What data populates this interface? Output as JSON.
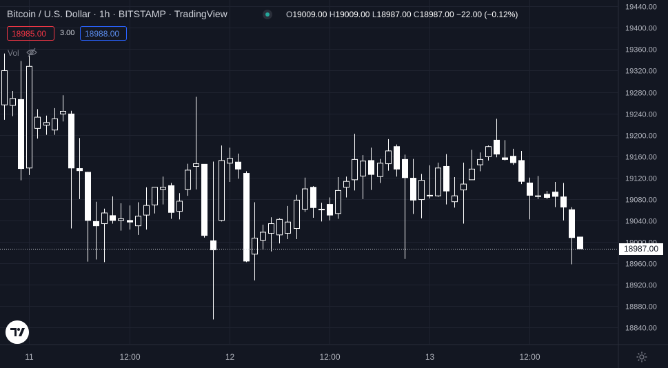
{
  "header": {
    "symbol_title": "Bitcoin / U.S. Dollar · 1h · BITSTAMP · TradingView",
    "ohlc": {
      "o_label": "O",
      "o": "19009.00",
      "h_label": "H",
      "h": "19009.00",
      "l_label": "L",
      "l": "18987.00",
      "c_label": "C",
      "c": "18987.00",
      "change": "−22.00 (−0.12%)"
    }
  },
  "trade": {
    "sell_price": "18985.00",
    "spread": "3.00",
    "buy_price": "18988.00"
  },
  "volume_label": "Vol",
  "icons": {
    "visibility": "eye-off-icon",
    "logo": "tradingview-logo-icon",
    "settings": "gear-icon"
  },
  "colors": {
    "background": "#131722",
    "candle": "#ffffff",
    "sell": "#f23645",
    "buy": "#2962ff",
    "grid": "#1f2330",
    "status_dot": "#26a69a"
  },
  "chart_data": {
    "type": "candlestick",
    "symbol": "BTCUSD",
    "interval": "1h",
    "y_ticks": [
      19440,
      19400,
      19360,
      19320,
      19280,
      19240,
      19200,
      19160,
      19120,
      19080,
      19040,
      19000,
      18960,
      18920,
      18880,
      18840
    ],
    "y_tick_labels": [
      "19440.00",
      "19400.00",
      "19360.00",
      "19320.00",
      "19280.00",
      "19240.00",
      "19200.00",
      "19160.00",
      "19120.00",
      "19080.00",
      "19040.00",
      "19000.00",
      "18960.00",
      "18920.00",
      "18880.00",
      "18840.00"
    ],
    "ylim": [
      18808,
      19452
    ],
    "x_tick_labels": [
      {
        "label": "11",
        "index": 3
      },
      {
        "label": "12:00",
        "index": 15
      },
      {
        "label": "12",
        "index": 27
      },
      {
        "label": "12:00",
        "index": 39
      },
      {
        "label": "13",
        "index": 51
      },
      {
        "label": "12:00",
        "index": 63
      }
    ],
    "last_price": 18987.0,
    "last_price_label": "18987.00",
    "candles": [
      {
        "o": 19256,
        "h": 19352,
        "l": 19228,
        "c": 19320
      },
      {
        "o": 19255,
        "h": 19282,
        "l": 19235,
        "c": 19268
      },
      {
        "o": 19266,
        "h": 19338,
        "l": 19115,
        "c": 19137
      },
      {
        "o": 19138,
        "h": 19350,
        "l": 19125,
        "c": 19328
      },
      {
        "o": 19212,
        "h": 19248,
        "l": 19193,
        "c": 19233
      },
      {
        "o": 19218,
        "h": 19236,
        "l": 19200,
        "c": 19223
      },
      {
        "o": 19209,
        "h": 19250,
        "l": 19200,
        "c": 19230
      },
      {
        "o": 19239,
        "h": 19274,
        "l": 19225,
        "c": 19244
      },
      {
        "o": 19239,
        "h": 19245,
        "l": 19025,
        "c": 19138
      },
      {
        "o": 19137,
        "h": 19194,
        "l": 19080,
        "c": 19133
      },
      {
        "o": 19130,
        "h": 19131,
        "l": 18963,
        "c": 19040
      },
      {
        "o": 19038,
        "h": 19075,
        "l": 18967,
        "c": 19030
      },
      {
        "o": 19034,
        "h": 19062,
        "l": 18962,
        "c": 19054
      },
      {
        "o": 19049,
        "h": 19085,
        "l": 19034,
        "c": 19040
      },
      {
        "o": 19040,
        "h": 19072,
        "l": 19021,
        "c": 19043
      },
      {
        "o": 19040,
        "h": 19068,
        "l": 19023,
        "c": 19037
      },
      {
        "o": 19030,
        "h": 19074,
        "l": 19013,
        "c": 19048
      },
      {
        "o": 19050,
        "h": 19102,
        "l": 19023,
        "c": 19068
      },
      {
        "o": 19069,
        "h": 19102,
        "l": 19053,
        "c": 19102
      },
      {
        "o": 19098,
        "h": 19122,
        "l": 19070,
        "c": 19102
      },
      {
        "o": 19105,
        "h": 19110,
        "l": 19043,
        "c": 19055
      },
      {
        "o": 19057,
        "h": 19091,
        "l": 19042,
        "c": 19076
      },
      {
        "o": 19098,
        "h": 19146,
        "l": 19086,
        "c": 19134
      },
      {
        "o": 19141,
        "h": 19271,
        "l": 19098,
        "c": 19146
      },
      {
        "o": 19145,
        "h": 19145,
        "l": 19008,
        "c": 19012
      },
      {
        "o": 19002,
        "h": 19150,
        "l": 18855,
        "c": 18985
      },
      {
        "o": 19040,
        "h": 19180,
        "l": 19038,
        "c": 19152
      },
      {
        "o": 19147,
        "h": 19176,
        "l": 19112,
        "c": 19156
      },
      {
        "o": 19149,
        "h": 19165,
        "l": 19118,
        "c": 19136
      },
      {
        "o": 19128,
        "h": 19132,
        "l": 18962,
        "c": 18964
      },
      {
        "o": 18977,
        "h": 19074,
        "l": 18928,
        "c": 19007
      },
      {
        "o": 19003,
        "h": 19032,
        "l": 18985,
        "c": 19018
      },
      {
        "o": 19016,
        "h": 19046,
        "l": 18982,
        "c": 19034
      },
      {
        "o": 19013,
        "h": 19044,
        "l": 18997,
        "c": 19042
      },
      {
        "o": 19016,
        "h": 19067,
        "l": 19005,
        "c": 19037
      },
      {
        "o": 19025,
        "h": 19088,
        "l": 19005,
        "c": 19078
      },
      {
        "o": 19061,
        "h": 19120,
        "l": 19056,
        "c": 19099
      },
      {
        "o": 19102,
        "h": 19104,
        "l": 19045,
        "c": 19064
      },
      {
        "o": 19060,
        "h": 19073,
        "l": 19038,
        "c": 19061
      },
      {
        "o": 19070,
        "h": 19083,
        "l": 19040,
        "c": 19050
      },
      {
        "o": 19053,
        "h": 19121,
        "l": 19043,
        "c": 19096
      },
      {
        "o": 19102,
        "h": 19122,
        "l": 19083,
        "c": 19113
      },
      {
        "o": 19116,
        "h": 19202,
        "l": 19096,
        "c": 19154
      },
      {
        "o": 19123,
        "h": 19162,
        "l": 19080,
        "c": 19151
      },
      {
        "o": 19152,
        "h": 19176,
        "l": 19097,
        "c": 19126
      },
      {
        "o": 19122,
        "h": 19155,
        "l": 19110,
        "c": 19147
      },
      {
        "o": 19146,
        "h": 19192,
        "l": 19133,
        "c": 19170
      },
      {
        "o": 19178,
        "h": 19182,
        "l": 19122,
        "c": 19136
      },
      {
        "o": 19154,
        "h": 19163,
        "l": 18968,
        "c": 19120
      },
      {
        "o": 19119,
        "h": 19155,
        "l": 19052,
        "c": 19078
      },
      {
        "o": 19079,
        "h": 19127,
        "l": 19044,
        "c": 19115
      },
      {
        "o": 19086,
        "h": 19143,
        "l": 19081,
        "c": 19087
      },
      {
        "o": 19086,
        "h": 19148,
        "l": 19084,
        "c": 19138
      },
      {
        "o": 19141,
        "h": 19164,
        "l": 19070,
        "c": 19095
      },
      {
        "o": 19075,
        "h": 19121,
        "l": 19064,
        "c": 19086
      },
      {
        "o": 19097,
        "h": 19148,
        "l": 19034,
        "c": 19108
      },
      {
        "o": 19116,
        "h": 19172,
        "l": 19116,
        "c": 19136
      },
      {
        "o": 19144,
        "h": 19167,
        "l": 19132,
        "c": 19154
      },
      {
        "o": 19159,
        "h": 19180,
        "l": 19152,
        "c": 19178
      },
      {
        "o": 19190,
        "h": 19230,
        "l": 19158,
        "c": 19164
      },
      {
        "o": 19157,
        "h": 19190,
        "l": 19152,
        "c": 19154
      },
      {
        "o": 19160,
        "h": 19174,
        "l": 19144,
        "c": 19148
      },
      {
        "o": 19152,
        "h": 19170,
        "l": 19108,
        "c": 19113
      },
      {
        "o": 19110,
        "h": 19120,
        "l": 19042,
        "c": 19087
      },
      {
        "o": 19086,
        "h": 19123,
        "l": 19080,
        "c": 19085
      },
      {
        "o": 19089,
        "h": 19095,
        "l": 19080,
        "c": 19083
      },
      {
        "o": 19093,
        "h": 19112,
        "l": 19065,
        "c": 19085
      },
      {
        "o": 19084,
        "h": 19110,
        "l": 19040,
        "c": 19065
      },
      {
        "o": 19060,
        "h": 19065,
        "l": 18958,
        "c": 19008
      },
      {
        "o": 19009,
        "h": 19009,
        "l": 18987,
        "c": 18987
      }
    ]
  }
}
